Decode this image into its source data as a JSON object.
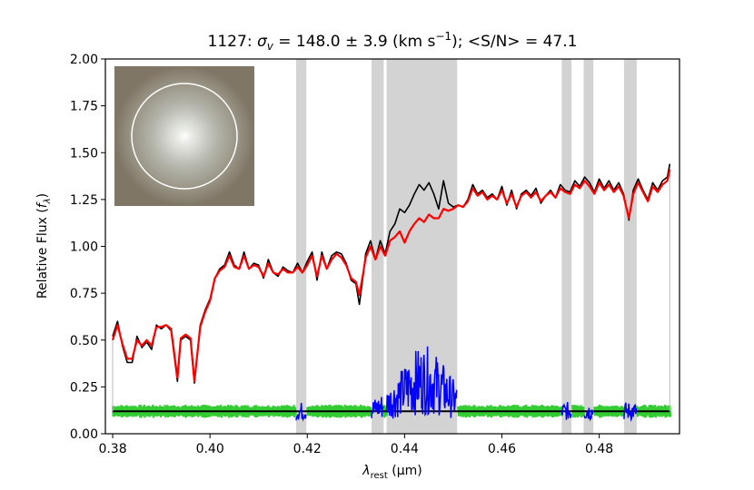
{
  "chart_data": {
    "type": "line",
    "title": {
      "galaxy_id": "1127",
      "sigma_symbol": "σ",
      "sigma_sub": "v",
      "sigma_text": " = 148.0 ± 3.9 (km s",
      "sigma_sup": "−1",
      "sn_text": "); <S/N> = 47.1"
    },
    "xlabel": {
      "symbol": "λ",
      "sub": "rest",
      "unit": " (μm)"
    },
    "ylabel": {
      "text": "Relative Flux (",
      "symbol": "f",
      "sub": "λ",
      "close": ")"
    },
    "xlim": [
      0.3785,
      0.4965
    ],
    "ylim": [
      0.0,
      2.0
    ],
    "x_tick_labels": [
      "0.38",
      "0.40",
      "0.42",
      "0.44",
      "0.46",
      "0.48"
    ],
    "y_tick_labels": [
      "0.00",
      "0.25",
      "0.50",
      "0.75",
      "1.00",
      "1.25",
      "1.50",
      "1.75",
      "2.00"
    ],
    "masked_regions": [
      [
        0.4177,
        0.4198
      ],
      [
        0.4332,
        0.4357
      ],
      [
        0.4363,
        0.4508
      ],
      [
        0.4723,
        0.4743
      ],
      [
        0.4768,
        0.4788
      ],
      [
        0.4851,
        0.4877
      ]
    ],
    "observed_spectrum": {
      "color": "#000000",
      "points": [
        [
          0.38,
          0.52
        ],
        [
          0.381,
          0.6
        ],
        [
          0.382,
          0.47
        ],
        [
          0.383,
          0.38
        ],
        [
          0.384,
          0.38
        ],
        [
          0.385,
          0.52
        ],
        [
          0.386,
          0.46
        ],
        [
          0.387,
          0.49
        ],
        [
          0.388,
          0.45
        ],
        [
          0.389,
          0.58
        ],
        [
          0.39,
          0.56
        ],
        [
          0.391,
          0.58
        ],
        [
          0.392,
          0.55
        ],
        [
          0.3933,
          0.28
        ],
        [
          0.394,
          0.5
        ],
        [
          0.395,
          0.52
        ],
        [
          0.396,
          0.5
        ],
        [
          0.3968,
          0.27
        ],
        [
          0.398,
          0.58
        ],
        [
          0.399,
          0.66
        ],
        [
          0.4,
          0.72
        ],
        [
          0.401,
          0.83
        ],
        [
          0.402,
          0.88
        ],
        [
          0.403,
          0.9
        ],
        [
          0.404,
          0.97
        ],
        [
          0.405,
          0.9
        ],
        [
          0.406,
          0.88
        ],
        [
          0.407,
          0.97
        ],
        [
          0.408,
          0.88
        ],
        [
          0.409,
          0.91
        ],
        [
          0.41,
          0.9
        ],
        [
          0.411,
          0.83
        ],
        [
          0.412,
          0.93
        ],
        [
          0.413,
          0.86
        ],
        [
          0.414,
          0.84
        ],
        [
          0.415,
          0.89
        ],
        [
          0.416,
          0.87
        ],
        [
          0.417,
          0.86
        ],
        [
          0.418,
          0.91
        ],
        [
          0.419,
          0.86
        ],
        [
          0.42,
          0.92
        ],
        [
          0.421,
          0.97
        ],
        [
          0.422,
          0.82
        ],
        [
          0.423,
          0.97
        ],
        [
          0.424,
          0.88
        ],
        [
          0.425,
          0.95
        ],
        [
          0.426,
          0.97
        ],
        [
          0.427,
          0.96
        ],
        [
          0.428,
          0.91
        ],
        [
          0.429,
          0.82
        ],
        [
          0.43,
          0.8
        ],
        [
          0.4307,
          0.69
        ],
        [
          0.4315,
          0.85
        ],
        [
          0.432,
          0.96
        ],
        [
          0.433,
          1.03
        ],
        [
          0.434,
          0.93
        ],
        [
          0.435,
          1.03
        ],
        [
          0.436,
          0.96
        ],
        [
          0.437,
          1.08
        ],
        [
          0.438,
          1.12
        ],
        [
          0.439,
          1.2
        ],
        [
          0.44,
          1.18
        ],
        [
          0.441,
          1.22
        ],
        [
          0.442,
          1.28
        ],
        [
          0.443,
          1.33
        ],
        [
          0.444,
          1.3
        ],
        [
          0.445,
          1.34
        ],
        [
          0.446,
          1.28
        ],
        [
          0.447,
          1.2
        ],
        [
          0.448,
          1.35
        ],
        [
          0.449,
          1.23
        ],
        [
          0.45,
          1.21
        ],
        [
          0.451,
          1.22
        ],
        [
          0.452,
          1.21
        ],
        [
          0.453,
          1.25
        ],
        [
          0.454,
          1.33
        ],
        [
          0.455,
          1.28
        ],
        [
          0.456,
          1.3
        ],
        [
          0.457,
          1.26
        ],
        [
          0.458,
          1.28
        ],
        [
          0.459,
          1.25
        ],
        [
          0.46,
          1.32
        ],
        [
          0.461,
          1.22
        ],
        [
          0.462,
          1.3
        ],
        [
          0.463,
          1.2
        ],
        [
          0.464,
          1.28
        ],
        [
          0.465,
          1.3
        ],
        [
          0.466,
          1.27
        ],
        [
          0.467,
          1.31
        ],
        [
          0.468,
          1.23
        ],
        [
          0.469,
          1.27
        ],
        [
          0.47,
          1.3
        ],
        [
          0.471,
          1.26
        ],
        [
          0.472,
          1.33
        ],
        [
          0.473,
          1.3
        ],
        [
          0.474,
          1.29
        ],
        [
          0.475,
          1.35
        ],
        [
          0.476,
          1.32
        ],
        [
          0.477,
          1.37
        ],
        [
          0.478,
          1.34
        ],
        [
          0.479,
          1.29
        ],
        [
          0.48,
          1.36
        ],
        [
          0.481,
          1.31
        ],
        [
          0.482,
          1.35
        ],
        [
          0.483,
          1.3
        ],
        [
          0.484,
          1.34
        ],
        [
          0.485,
          1.28
        ],
        [
          0.4861,
          1.14
        ],
        [
          0.487,
          1.3
        ],
        [
          0.488,
          1.36
        ],
        [
          0.489,
          1.3
        ],
        [
          0.49,
          1.25
        ],
        [
          0.491,
          1.34
        ],
        [
          0.492,
          1.3
        ],
        [
          0.493,
          1.35
        ],
        [
          0.494,
          1.37
        ],
        [
          0.4945,
          1.44
        ]
      ]
    },
    "model_spectrum": {
      "color": "#ff0000",
      "points": [
        [
          0.38,
          0.5
        ],
        [
          0.381,
          0.58
        ],
        [
          0.382,
          0.48
        ],
        [
          0.383,
          0.4
        ],
        [
          0.384,
          0.4
        ],
        [
          0.385,
          0.5
        ],
        [
          0.386,
          0.47
        ],
        [
          0.387,
          0.5
        ],
        [
          0.388,
          0.47
        ],
        [
          0.389,
          0.57
        ],
        [
          0.39,
          0.57
        ],
        [
          0.391,
          0.58
        ],
        [
          0.392,
          0.56
        ],
        [
          0.3933,
          0.3
        ],
        [
          0.394,
          0.51
        ],
        [
          0.395,
          0.53
        ],
        [
          0.396,
          0.51
        ],
        [
          0.3968,
          0.28
        ],
        [
          0.398,
          0.57
        ],
        [
          0.399,
          0.65
        ],
        [
          0.4,
          0.71
        ],
        [
          0.401,
          0.83
        ],
        [
          0.402,
          0.87
        ],
        [
          0.403,
          0.89
        ],
        [
          0.404,
          0.95
        ],
        [
          0.405,
          0.89
        ],
        [
          0.406,
          0.88
        ],
        [
          0.407,
          0.95
        ],
        [
          0.408,
          0.88
        ],
        [
          0.409,
          0.9
        ],
        [
          0.41,
          0.89
        ],
        [
          0.411,
          0.84
        ],
        [
          0.412,
          0.91
        ],
        [
          0.413,
          0.86
        ],
        [
          0.414,
          0.85
        ],
        [
          0.415,
          0.88
        ],
        [
          0.416,
          0.86
        ],
        [
          0.417,
          0.86
        ],
        [
          0.418,
          0.89
        ],
        [
          0.419,
          0.86
        ],
        [
          0.42,
          0.9
        ],
        [
          0.421,
          0.95
        ],
        [
          0.422,
          0.84
        ],
        [
          0.423,
          0.95
        ],
        [
          0.424,
          0.88
        ],
        [
          0.425,
          0.93
        ],
        [
          0.426,
          0.96
        ],
        [
          0.427,
          0.94
        ],
        [
          0.428,
          0.9
        ],
        [
          0.429,
          0.83
        ],
        [
          0.43,
          0.81
        ],
        [
          0.4307,
          0.74
        ],
        [
          0.4315,
          0.86
        ],
        [
          0.432,
          0.94
        ],
        [
          0.433,
          1.0
        ],
        [
          0.434,
          0.93
        ],
        [
          0.435,
          1.0
        ],
        [
          0.436,
          0.95
        ],
        [
          0.437,
          1.03
        ],
        [
          0.438,
          1.05
        ],
        [
          0.439,
          1.08
        ],
        [
          0.44,
          1.02
        ],
        [
          0.441,
          1.08
        ],
        [
          0.442,
          1.12
        ],
        [
          0.443,
          1.15
        ],
        [
          0.444,
          1.13
        ],
        [
          0.445,
          1.17
        ],
        [
          0.446,
          1.15
        ],
        [
          0.447,
          1.15
        ],
        [
          0.448,
          1.2
        ],
        [
          0.449,
          1.19
        ],
        [
          0.45,
          1.2
        ],
        [
          0.451,
          1.22
        ],
        [
          0.452,
          1.21
        ],
        [
          0.453,
          1.24
        ],
        [
          0.454,
          1.31
        ],
        [
          0.455,
          1.27
        ],
        [
          0.456,
          1.29
        ],
        [
          0.457,
          1.25
        ],
        [
          0.458,
          1.27
        ],
        [
          0.459,
          1.25
        ],
        [
          0.46,
          1.3
        ],
        [
          0.461,
          1.23
        ],
        [
          0.462,
          1.28
        ],
        [
          0.463,
          1.21
        ],
        [
          0.464,
          1.27
        ],
        [
          0.465,
          1.29
        ],
        [
          0.466,
          1.26
        ],
        [
          0.467,
          1.29
        ],
        [
          0.468,
          1.24
        ],
        [
          0.469,
          1.27
        ],
        [
          0.47,
          1.29
        ],
        [
          0.471,
          1.26
        ],
        [
          0.472,
          1.31
        ],
        [
          0.473,
          1.29
        ],
        [
          0.474,
          1.28
        ],
        [
          0.475,
          1.33
        ],
        [
          0.476,
          1.31
        ],
        [
          0.477,
          1.35
        ],
        [
          0.478,
          1.32
        ],
        [
          0.479,
          1.28
        ],
        [
          0.48,
          1.34
        ],
        [
          0.481,
          1.3
        ],
        [
          0.482,
          1.33
        ],
        [
          0.483,
          1.29
        ],
        [
          0.484,
          1.32
        ],
        [
          0.485,
          1.27
        ],
        [
          0.4861,
          1.15
        ],
        [
          0.487,
          1.28
        ],
        [
          0.488,
          1.34
        ],
        [
          0.489,
          1.29
        ],
        [
          0.49,
          1.24
        ],
        [
          0.491,
          1.32
        ],
        [
          0.492,
          1.29
        ],
        [
          0.493,
          1.33
        ],
        [
          0.494,
          1.35
        ],
        [
          0.4945,
          1.41
        ]
      ]
    },
    "residual_baseline": {
      "y": 0.12,
      "color": "#000000"
    },
    "noise_band": {
      "center": 0.12,
      "half_width": 0.035,
      "color": "#33cc33"
    },
    "residual_masked": {
      "color": "#0000ff",
      "amplitude_edges": 0.05,
      "bump": {
        "center": 0.444,
        "peak": 0.3,
        "width": 0.0045
      }
    }
  }
}
